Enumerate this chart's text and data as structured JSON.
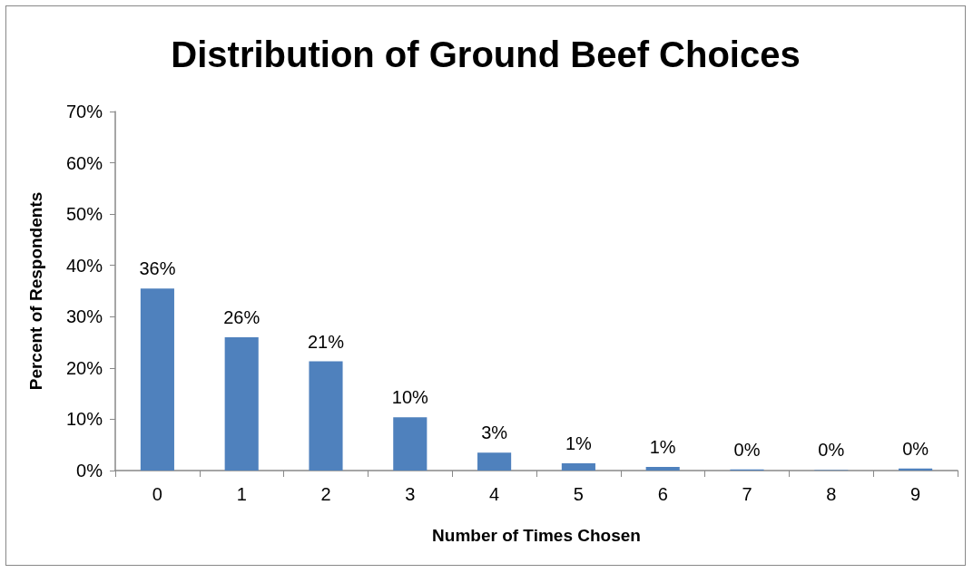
{
  "chart_data": {
    "type": "bar",
    "title": "Distribution of Ground Beef Choices",
    "xlabel": "Number of Times Chosen",
    "ylabel": "Percent of Respondents",
    "categories": [
      "0",
      "1",
      "2",
      "3",
      "4",
      "5",
      "6",
      "7",
      "8",
      "9"
    ],
    "values": [
      35.5,
      26.0,
      21.3,
      10.4,
      3.5,
      1.4,
      0.7,
      0.2,
      0.1,
      0.4
    ],
    "value_labels": [
      "36%",
      "26%",
      "21%",
      "10%",
      "3%",
      "1%",
      "1%",
      "0%",
      "0%",
      "0%"
    ],
    "color": "#4f81bd",
    "ylim": [
      0,
      70
    ],
    "yticks": [
      {
        "value": 0,
        "label": "0%"
      },
      {
        "value": 10,
        "label": "10%"
      },
      {
        "value": 20,
        "label": "20%"
      },
      {
        "value": 30,
        "label": "30%"
      },
      {
        "value": 40,
        "label": "40%"
      },
      {
        "value": 50,
        "label": "50%"
      },
      {
        "value": 60,
        "label": "60%"
      },
      {
        "value": 70,
        "label": "70%"
      }
    ],
    "tick_labels": true
  }
}
